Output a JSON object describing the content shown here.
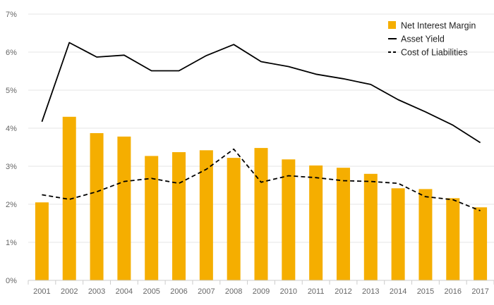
{
  "chart_data": {
    "type": "bar",
    "categories": [
      "2001",
      "2002",
      "2003",
      "2004",
      "2005",
      "2006",
      "2007",
      "2008",
      "2009",
      "2010",
      "2011",
      "2012",
      "2013",
      "2014",
      "2015",
      "2016",
      "2017"
    ],
    "series": [
      {
        "name": "Net Interest Margin",
        "type": "bar",
        "color": "#F5AE00",
        "values": [
          2.05,
          4.3,
          3.87,
          3.78,
          3.27,
          3.37,
          3.42,
          3.22,
          3.48,
          3.18,
          3.02,
          2.96,
          2.8,
          2.42,
          2.4,
          2.16,
          1.92
        ]
      },
      {
        "name": "Asset Yield",
        "type": "line",
        "color": "#000000",
        "style": "solid",
        "values": [
          4.17,
          6.25,
          5.87,
          5.92,
          5.51,
          5.51,
          5.91,
          6.2,
          5.75,
          5.62,
          5.42,
          5.3,
          5.15,
          4.75,
          4.43,
          4.08,
          3.62
        ]
      },
      {
        "name": "Cost of Liabilities",
        "type": "line",
        "color": "#000000",
        "style": "dashed",
        "values": [
          2.25,
          2.13,
          2.33,
          2.6,
          2.68,
          2.55,
          2.92,
          3.45,
          2.58,
          2.75,
          2.7,
          2.62,
          2.6,
          2.55,
          2.2,
          2.12,
          1.83
        ]
      }
    ],
    "y_ticks": [
      "0%",
      "1%",
      "2%",
      "3%",
      "4%",
      "5%",
      "6%",
      "7%"
    ],
    "ylim": [
      0,
      7
    ],
    "title": "",
    "xlabel": "",
    "ylabel": "",
    "grid": true,
    "legend_position": "top-right",
    "colors": {
      "grid": "#e6e6e6",
      "axis": "#cccccc",
      "tick_text": "#666666"
    }
  }
}
